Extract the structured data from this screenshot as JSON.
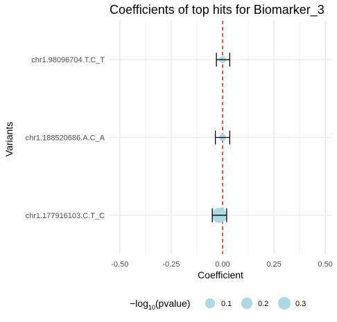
{
  "chart_data": {
    "type": "scatter",
    "title": "Coefficients of top hits for Biomarker_3",
    "xlabel": "Coefficient",
    "ylabel": "Variants",
    "xlim": [
      -0.55,
      0.53
    ],
    "x_ticks": [
      -0.5,
      -0.25,
      0.0,
      0.25,
      0.5
    ],
    "x_tick_labels": [
      "-0.50",
      "-0.25",
      "0.00",
      "0.25",
      "0.50"
    ],
    "categories": [
      "chr1.98096704.T.C_T",
      "chr1.188520686.A.C_A",
      "chr1.177916103.C.T_C"
    ],
    "points": [
      {
        "variant": "chr1.98096704.T.C_T",
        "coefficient": 0.0,
        "ci_low": -0.03,
        "ci_high": 0.035,
        "neg_log10_p": 0.01
      },
      {
        "variant": "chr1.188520686.A.C_A",
        "coefficient": 0.0,
        "ci_low": -0.035,
        "ci_high": 0.035,
        "neg_log10_p": 0.01
      },
      {
        "variant": "chr1.177916103.C.T_C",
        "coefficient": -0.015,
        "ci_low": -0.05,
        "ci_high": 0.02,
        "neg_log10_p": 0.35
      }
    ],
    "reference_line": {
      "x": 0,
      "color": "#e41a1c",
      "style": "dashed"
    },
    "legend": {
      "title_prefix": "−log",
      "title_sub": "10",
      "title_suffix": "(pvalue)",
      "placement": "bottom",
      "entries": [
        {
          "label": "0.1",
          "value": 0.1
        },
        {
          "label": "0.2",
          "value": 0.2
        },
        {
          "label": "0.3",
          "value": 0.3
        }
      ]
    },
    "point_color": "#add8e6",
    "grid": true
  }
}
